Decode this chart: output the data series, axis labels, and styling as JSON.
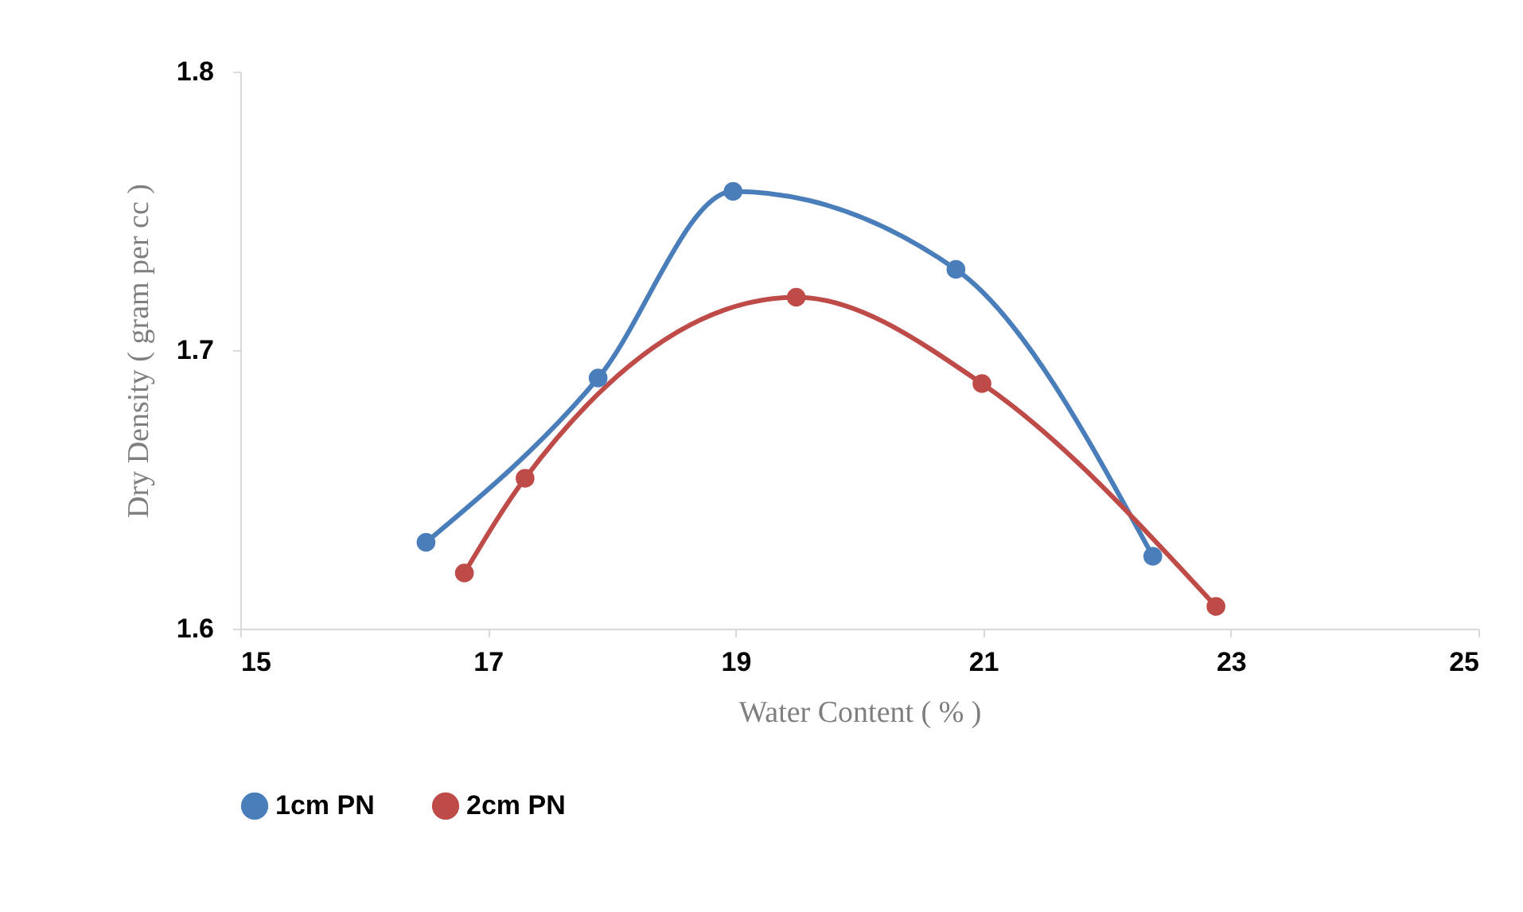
{
  "chart_data": {
    "type": "line",
    "xlabel": "Water Content ( % )",
    "ylabel": "Dry Density ( gram per cc  )",
    "xlim": [
      15,
      25
    ],
    "xticks": [
      15,
      17,
      19,
      21,
      23,
      25
    ],
    "ylim": [
      1.6,
      1.8
    ],
    "yticks": [
      1.6,
      1.7,
      1.8
    ],
    "grid": false,
    "legend": "bottom",
    "marker": "circle",
    "line_style": "solid",
    "series": [
      {
        "name": "1cm PN",
        "color": "#4a7ebb",
        "x": [
          16.5,
          17.89,
          18.98,
          20.78,
          22.37
        ],
        "values": [
          1.631,
          1.69,
          1.757,
          1.729,
          1.626
        ]
      },
      {
        "name": "2cm PN",
        "color": "#be4b48",
        "x": [
          16.81,
          17.3,
          19.49,
          20.99,
          22.88
        ],
        "values": [
          1.62,
          1.654,
          1.719,
          1.688,
          1.608
        ]
      }
    ]
  }
}
